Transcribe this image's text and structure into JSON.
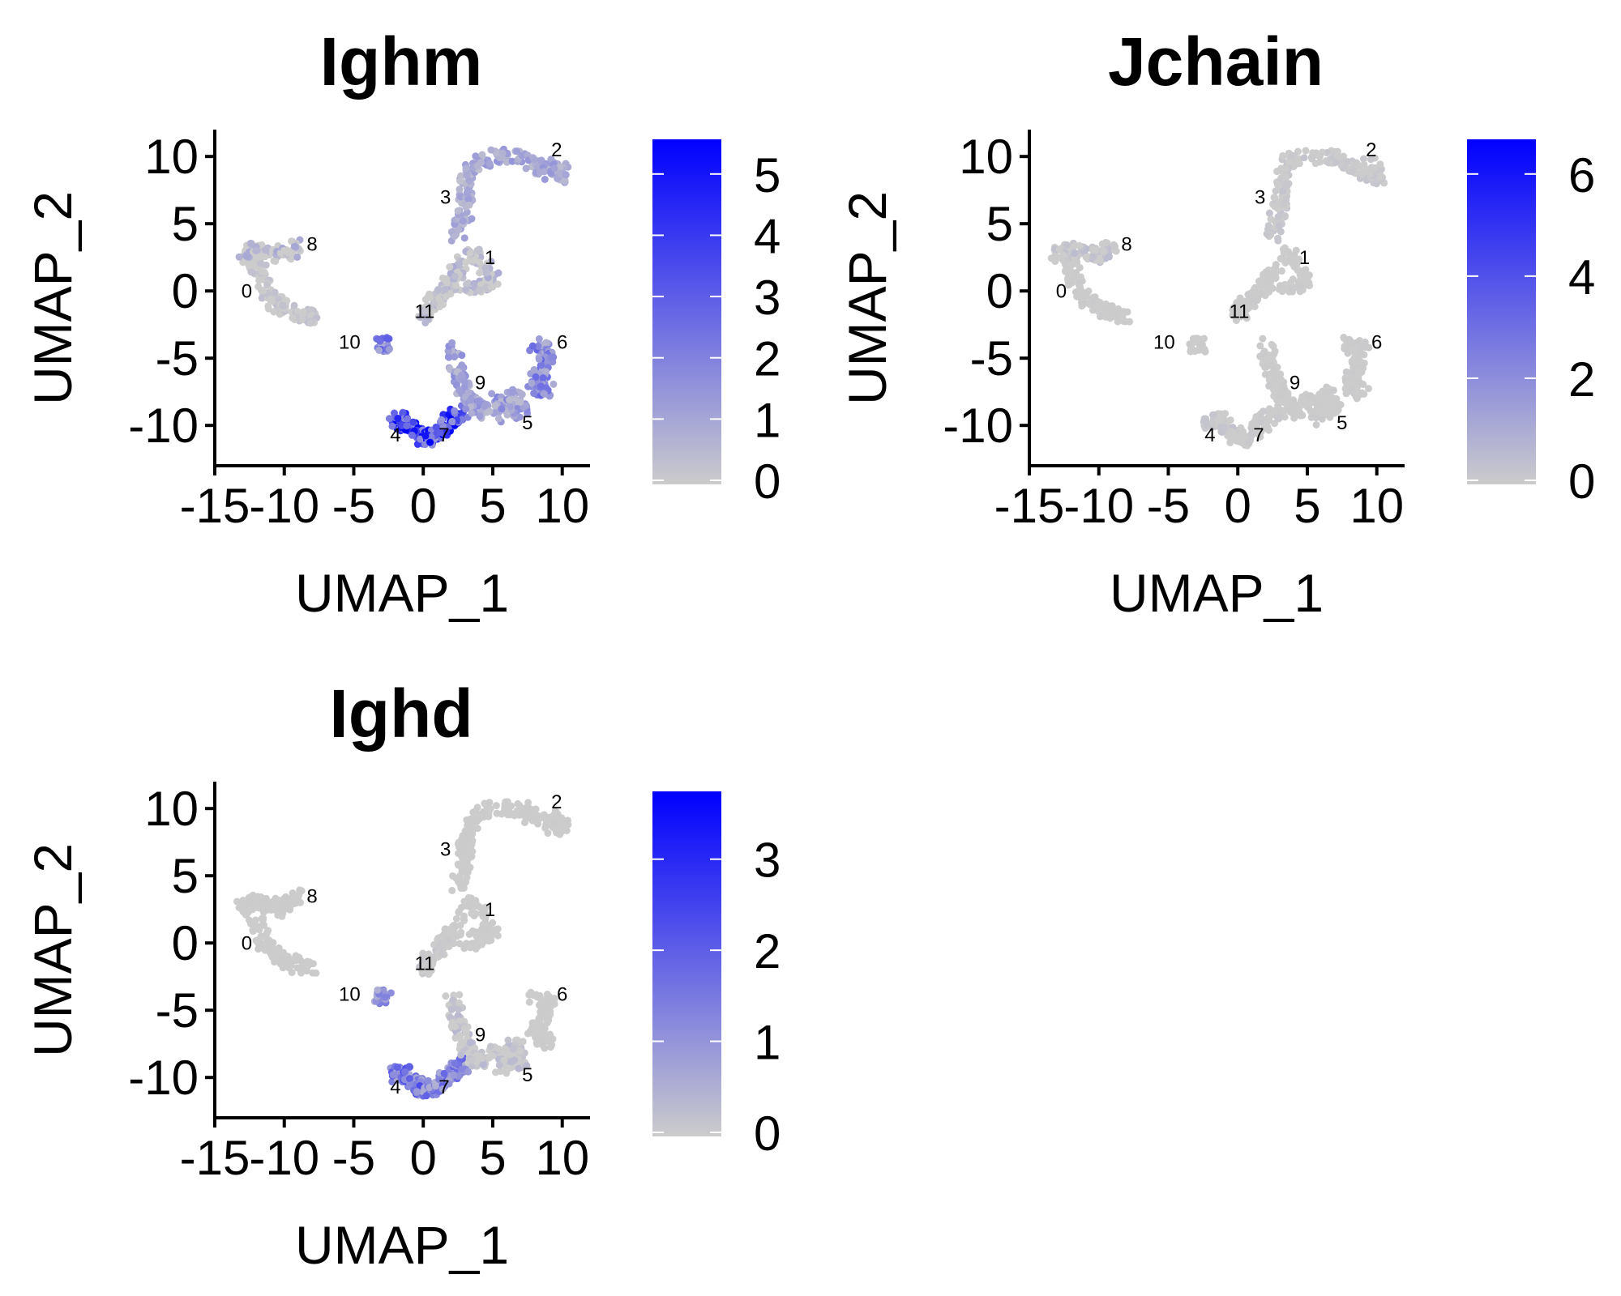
{
  "chart_data": [
    {
      "type": "scatter",
      "title": "Ighm",
      "xlabel": "UMAP_1",
      "ylabel": "UMAP_2",
      "xlim": [
        -15,
        12
      ],
      "ylim": [
        -13,
        12
      ],
      "xticks": [
        "-15",
        "-10",
        "-5",
        "0",
        "5",
        "10"
      ],
      "yticks": [
        "10",
        "5",
        "0",
        "-5",
        "-10"
      ],
      "legend": {
        "placement": "right",
        "low_color": "#cccccc",
        "high_color": "#0000ff",
        "min": 0,
        "max": 5.5,
        "ticks": [
          "0",
          "1",
          "2",
          "3",
          "4",
          "5"
        ]
      },
      "cluster_labels": [
        {
          "label": "0",
          "x": -12.7,
          "y": -0.5
        },
        {
          "label": "1",
          "x": 4.8,
          "y": 2.0
        },
        {
          "label": "2",
          "x": 9.6,
          "y": 10.0
        },
        {
          "label": "3",
          "x": 1.6,
          "y": 6.5
        },
        {
          "label": "4",
          "x": -2.0,
          "y": -11.2
        },
        {
          "label": "5",
          "x": 7.5,
          "y": -10.3
        },
        {
          "label": "6",
          "x": 10.0,
          "y": -4.3
        },
        {
          "label": "7",
          "x": 1.5,
          "y": -11.2
        },
        {
          "label": "8",
          "x": -8.0,
          "y": 3.0
        },
        {
          "label": "9",
          "x": 4.1,
          "y": -7.3
        },
        {
          "label": "10",
          "x": -5.3,
          "y": -4.3
        },
        {
          "label": "11",
          "x": 0.1,
          "y": -2.0
        }
      ],
      "cluster_expression": {
        "0": 0.3,
        "1": 0.7,
        "2": 1.2,
        "3": 1.0,
        "4": 5.0,
        "5": 1.5,
        "6": 2.2,
        "7": 4.8,
        "8": 0.8,
        "9": 1.4,
        "10": 2.5,
        "11": 0.5
      }
    },
    {
      "type": "scatter",
      "title": "Jchain",
      "xlabel": "UMAP_1",
      "ylabel": "UMAP_2",
      "xlim": [
        -15,
        12
      ],
      "ylim": [
        -13,
        12
      ],
      "xticks": [
        "-15",
        "-10",
        "-5",
        "0",
        "5",
        "10"
      ],
      "yticks": [
        "10",
        "5",
        "0",
        "-5",
        "-10"
      ],
      "legend": {
        "placement": "right",
        "low_color": "#cccccc",
        "high_color": "#0000ff",
        "min": 0,
        "max": 6.6,
        "ticks": [
          "0",
          "2",
          "4",
          "6"
        ]
      },
      "cluster_labels": [
        {
          "label": "0",
          "x": -12.7,
          "y": -0.5
        },
        {
          "label": "1",
          "x": 4.8,
          "y": 2.0
        },
        {
          "label": "2",
          "x": 9.6,
          "y": 10.0
        },
        {
          "label": "3",
          "x": 1.6,
          "y": 6.5
        },
        {
          "label": "4",
          "x": -2.0,
          "y": -11.2
        },
        {
          "label": "5",
          "x": 7.5,
          "y": -10.3
        },
        {
          "label": "6",
          "x": 10.0,
          "y": -4.3
        },
        {
          "label": "7",
          "x": 1.5,
          "y": -11.2
        },
        {
          "label": "8",
          "x": -8.0,
          "y": 3.0
        },
        {
          "label": "9",
          "x": 4.1,
          "y": -7.3
        },
        {
          "label": "10",
          "x": -5.3,
          "y": -4.3
        },
        {
          "label": "11",
          "x": 0.1,
          "y": -2.0
        }
      ],
      "cluster_expression": {
        "0": 0.05,
        "1": 0.05,
        "2": 0.2,
        "3": 0.2,
        "4": 0.3,
        "5": 0.05,
        "6": 0.05,
        "7": 0.1,
        "8": 0.4,
        "9": 0.05,
        "10": 0.05,
        "11": 0.05
      }
    },
    {
      "type": "scatter",
      "title": "Ighd",
      "xlabel": "UMAP_1",
      "ylabel": "UMAP_2",
      "xlim": [
        -15,
        12
      ],
      "ylim": [
        -13,
        12
      ],
      "xticks": [
        "-15",
        "-10",
        "-5",
        "0",
        "5",
        "10"
      ],
      "yticks": [
        "10",
        "5",
        "0",
        "-5",
        "-10"
      ],
      "legend": {
        "placement": "right",
        "low_color": "#cccccc",
        "high_color": "#0000ff",
        "min": 0,
        "max": 3.7,
        "ticks": [
          "0",
          "1",
          "2",
          "3"
        ]
      },
      "cluster_labels": [
        {
          "label": "0",
          "x": -12.7,
          "y": -0.5
        },
        {
          "label": "1",
          "x": 4.8,
          "y": 2.0
        },
        {
          "label": "2",
          "x": 9.6,
          "y": 10.0
        },
        {
          "label": "3",
          "x": 1.6,
          "y": 6.5
        },
        {
          "label": "4",
          "x": -2.0,
          "y": -11.2
        },
        {
          "label": "5",
          "x": 7.5,
          "y": -10.3
        },
        {
          "label": "6",
          "x": 10.0,
          "y": -4.3
        },
        {
          "label": "7",
          "x": 1.5,
          "y": -11.2
        },
        {
          "label": "8",
          "x": -8.0,
          "y": 3.0
        },
        {
          "label": "9",
          "x": 4.1,
          "y": -7.3
        },
        {
          "label": "10",
          "x": -5.3,
          "y": -4.3
        },
        {
          "label": "11",
          "x": 0.1,
          "y": -2.0
        }
      ],
      "cluster_expression": {
        "0": 0.02,
        "1": 0.02,
        "2": 0.02,
        "3": 0.02,
        "4": 1.8,
        "5": 0.3,
        "6": 0.02,
        "7": 1.6,
        "8": 0.02,
        "9": 0.3,
        "10": 1.2,
        "11": 0.1
      }
    }
  ]
}
